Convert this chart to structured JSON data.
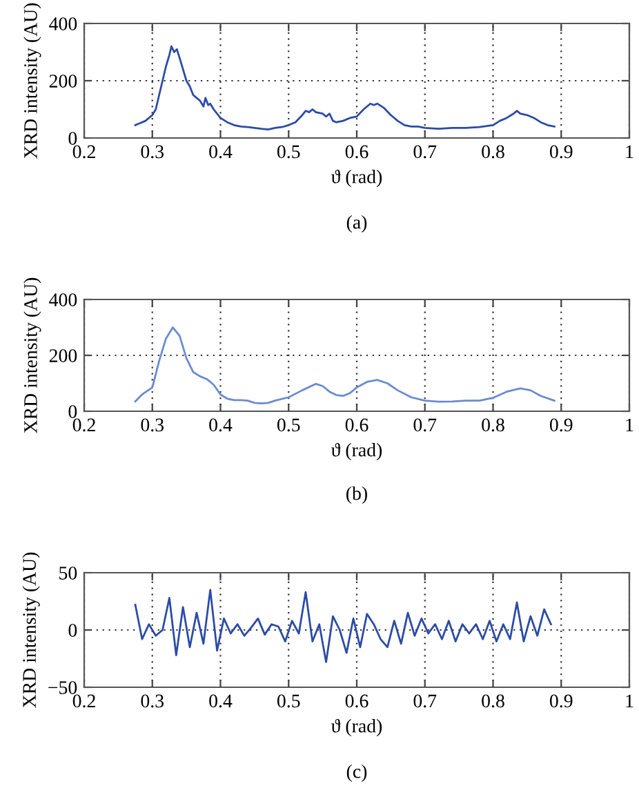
{
  "chart_data": [
    {
      "type": "line",
      "xlabel": "ϑ (rad)",
      "ylabel": "XRD intensity (AU)",
      "annotations": [
        "(a)"
      ],
      "xlim": [
        0.2,
        1
      ],
      "xticks": [
        0.2,
        0.3,
        0.4,
        0.5,
        0.6,
        0.7,
        0.8,
        0.9,
        1
      ],
      "ylim": [
        0,
        400
      ],
      "yticks": [
        0,
        200,
        400
      ],
      "grid": true,
      "line_style": "solid",
      "series": [
        {
          "color": "#2b4ba6",
          "x": [
            0.275,
            0.28,
            0.29,
            0.3,
            0.305,
            0.31,
            0.315,
            0.32,
            0.325,
            0.328,
            0.332,
            0.336,
            0.34,
            0.345,
            0.35,
            0.355,
            0.36,
            0.365,
            0.37,
            0.375,
            0.378,
            0.382,
            0.385,
            0.39,
            0.4,
            0.41,
            0.42,
            0.43,
            0.44,
            0.45,
            0.46,
            0.47,
            0.48,
            0.49,
            0.5,
            0.51,
            0.52,
            0.525,
            0.53,
            0.535,
            0.54,
            0.55,
            0.555,
            0.56,
            0.565,
            0.57,
            0.58,
            0.59,
            0.6,
            0.61,
            0.62,
            0.625,
            0.63,
            0.64,
            0.65,
            0.66,
            0.67,
            0.68,
            0.69,
            0.7,
            0.72,
            0.74,
            0.76,
            0.78,
            0.8,
            0.81,
            0.82,
            0.83,
            0.835,
            0.84,
            0.85,
            0.86,
            0.87,
            0.88,
            0.89
          ],
          "values": [
            45,
            50,
            60,
            80,
            100,
            150,
            200,
            250,
            290,
            320,
            300,
            310,
            280,
            240,
            200,
            180,
            150,
            140,
            130,
            110,
            140,
            115,
            120,
            100,
            70,
            55,
            45,
            40,
            38,
            35,
            32,
            30,
            35,
            38,
            45,
            55,
            80,
            95,
            90,
            100,
            90,
            85,
            75,
            85,
            60,
            55,
            60,
            70,
            75,
            100,
            120,
            115,
            120,
            105,
            80,
            60,
            45,
            40,
            40,
            35,
            32,
            35,
            35,
            38,
            45,
            60,
            70,
            85,
            95,
            85,
            80,
            70,
            55,
            45,
            40
          ]
        }
      ]
    },
    {
      "type": "line",
      "xlabel": "ϑ (rad)",
      "ylabel": "XRD intensity (AU)",
      "annotations": [
        "(b)"
      ],
      "xlim": [
        0.2,
        1
      ],
      "xticks": [
        0.2,
        0.3,
        0.4,
        0.5,
        0.6,
        0.7,
        0.8,
        0.9,
        1
      ],
      "ylim": [
        0,
        400
      ],
      "yticks": [
        0,
        200,
        400
      ],
      "grid": true,
      "line_style": "solid",
      "series": [
        {
          "color": "#6a8bd0",
          "x": [
            0.275,
            0.285,
            0.3,
            0.31,
            0.32,
            0.33,
            0.34,
            0.35,
            0.36,
            0.37,
            0.38,
            0.39,
            0.4,
            0.41,
            0.42,
            0.43,
            0.44,
            0.45,
            0.46,
            0.47,
            0.48,
            0.5,
            0.52,
            0.54,
            0.55,
            0.56,
            0.57,
            0.58,
            0.59,
            0.6,
            0.615,
            0.63,
            0.645,
            0.66,
            0.68,
            0.7,
            0.72,
            0.74,
            0.76,
            0.78,
            0.8,
            0.82,
            0.84,
            0.855,
            0.87,
            0.89
          ],
          "values": [
            35,
            60,
            85,
            180,
            260,
            300,
            270,
            190,
            140,
            125,
            115,
            95,
            60,
            45,
            40,
            40,
            38,
            30,
            28,
            30,
            38,
            50,
            75,
            98,
            90,
            70,
            58,
            55,
            65,
            85,
            105,
            112,
            100,
            75,
            50,
            38,
            34,
            35,
            38,
            38,
            48,
            70,
            82,
            75,
            55,
            38
          ]
        }
      ]
    },
    {
      "type": "line",
      "xlabel": "ϑ (rad)",
      "ylabel": "XRD intensity (AU)",
      "annotations": [
        "(c)"
      ],
      "xlim": [
        0.2,
        1
      ],
      "xticks": [
        0.2,
        0.3,
        0.4,
        0.5,
        0.6,
        0.7,
        0.8,
        0.9,
        1
      ],
      "ylim": [
        -50,
        50
      ],
      "yticks": [
        {
          "value": -50,
          "label": "−50"
        },
        0,
        50
      ],
      "grid": true,
      "line_style": "solid",
      "series": [
        {
          "color": "#2b4ba6",
          "x": [
            0.275,
            0.285,
            0.295,
            0.305,
            0.315,
            0.325,
            0.335,
            0.345,
            0.355,
            0.365,
            0.375,
            0.385,
            0.395,
            0.405,
            0.415,
            0.425,
            0.435,
            0.445,
            0.455,
            0.465,
            0.475,
            0.485,
            0.495,
            0.505,
            0.515,
            0.525,
            0.535,
            0.545,
            0.555,
            0.565,
            0.575,
            0.585,
            0.595,
            0.605,
            0.615,
            0.625,
            0.635,
            0.645,
            0.655,
            0.665,
            0.675,
            0.685,
            0.695,
            0.705,
            0.715,
            0.725,
            0.735,
            0.745,
            0.755,
            0.765,
            0.775,
            0.785,
            0.795,
            0.805,
            0.815,
            0.825,
            0.835,
            0.845,
            0.855,
            0.865,
            0.875,
            0.885
          ],
          "values": [
            22,
            -8,
            5,
            -5,
            0,
            28,
            -22,
            20,
            -15,
            15,
            -12,
            35,
            -18,
            10,
            -3,
            5,
            -5,
            2,
            10,
            -4,
            5,
            3,
            -10,
            8,
            -3,
            33,
            -10,
            5,
            -28,
            12,
            0,
            -20,
            10,
            -15,
            14,
            5,
            -8,
            -15,
            8,
            -12,
            15,
            -5,
            10,
            -3,
            5,
            -8,
            8,
            -10,
            5,
            -3,
            5,
            -8,
            8,
            -10,
            5,
            -8,
            24,
            -10,
            12,
            -5,
            18,
            5
          ]
        }
      ]
    }
  ]
}
